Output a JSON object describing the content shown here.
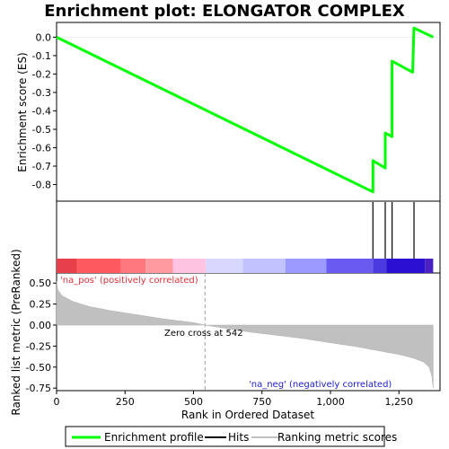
{
  "chart_data": {
    "type": "line",
    "title": "Enrichment plot: ELONGATOR COMPLEX",
    "panels": {
      "enrichment": {
        "ylabel": "Enrichment score (ES)",
        "ylim": [
          -0.89,
          0.08
        ],
        "yticks": [
          0.0,
          -0.1,
          -0.2,
          -0.3,
          -0.4,
          -0.5,
          -0.6,
          -0.7,
          -0.8
        ],
        "ytick_labels": [
          "0.0",
          "-0.1",
          "-0.2",
          "-0.3",
          "-0.4",
          "-0.5",
          "-0.6",
          "-0.7",
          "-0.8"
        ],
        "series": [
          {
            "name": "Enrichment profile",
            "color": "#00ff00",
            "x": [
              0,
              1155,
              1155,
              1200,
              1200,
              1225,
              1225,
              1300,
              1305,
              1375
            ],
            "y": [
              0.0,
              -0.84,
              -0.67,
              -0.71,
              -0.52,
              -0.54,
              -0.13,
              -0.19,
              0.05,
              0.0
            ]
          }
        ]
      },
      "hits": {
        "positions": [
          1155,
          1200,
          1225,
          1305
        ]
      },
      "ranked_metric": {
        "ylabel": "Ranked list metric (PreRanked)",
        "ylim": [
          -0.78,
          0.62
        ],
        "yticks": [
          0.5,
          0.25,
          0.0,
          -0.25,
          -0.5,
          -0.75
        ],
        "ytick_labels": [
          "0.50",
          "0.25",
          "0.00",
          "-0.25",
          "-0.50",
          "-0.75"
        ],
        "profile_x": [
          0,
          5,
          20,
          60,
          120,
          200,
          300,
          400,
          500,
          542,
          600,
          700,
          800,
          900,
          1000,
          1100,
          1200,
          1250,
          1300,
          1340,
          1360,
          1370,
          1375
        ],
        "profile_y": [
          0.52,
          0.42,
          0.35,
          0.28,
          0.22,
          0.17,
          0.12,
          0.07,
          0.03,
          0.0,
          -0.03,
          -0.08,
          -0.12,
          -0.16,
          -0.21,
          -0.26,
          -0.32,
          -0.35,
          -0.39,
          -0.44,
          -0.5,
          -0.6,
          -0.75
        ],
        "zero_cross_label": "Zero cross at 542",
        "zero_cross": 542,
        "pos_label": "'na_pos' (positively correlated)",
        "neg_label": "'na_neg' (negatively correlated)"
      }
    },
    "xlabel": "Rank in Ordered Dataset",
    "xlim": [
      0,
      1400
    ],
    "xticks": [
      0,
      250,
      500,
      750,
      1000,
      1250
    ],
    "xtick_labels": [
      "0",
      "250",
      "500",
      "750",
      "1,000",
      "1,250"
    ],
    "color_bar": {
      "boundaries": [
        0,
        75,
        235,
        325,
        425,
        545,
        680,
        835,
        985,
        1155,
        1205,
        1345,
        1375
      ],
      "colors": [
        "#e8404a",
        "#ff5a5f",
        "#ff7880",
        "#ff9aa0",
        "#ffc4e2",
        "#d8d8ff",
        "#c2c2ff",
        "#9a9aff",
        "#6a5af0",
        "#4a3ae0",
        "#2a10d0",
        "#4a20c0"
      ]
    },
    "legend": {
      "placement": "bottom",
      "items": [
        {
          "label": "Enrichment profile",
          "color": "#00ff00"
        },
        {
          "label": "Hits",
          "color": "#000000"
        },
        {
          "label": "Ranking metric scores",
          "color": "#c0c0c0"
        }
      ]
    }
  }
}
